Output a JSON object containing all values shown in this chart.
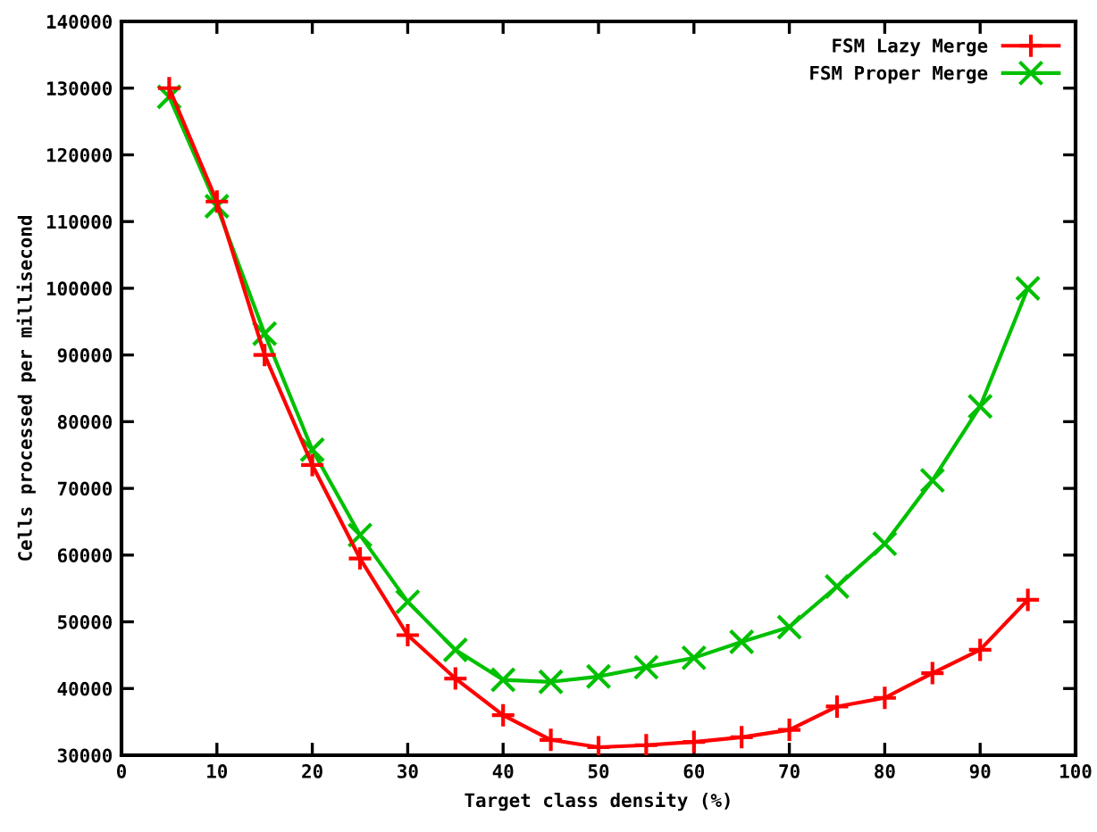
{
  "chart_data": {
    "type": "line",
    "xlabel": "Target class density (%)",
    "ylabel": "Cells processed per millisecond",
    "x": [
      5,
      10,
      15,
      20,
      25,
      30,
      35,
      40,
      45,
      50,
      55,
      60,
      65,
      70,
      75,
      80,
      85,
      90,
      95
    ],
    "series": [
      {
        "name": "FSM Lazy Merge",
        "color": "#ff0000",
        "marker": "plus",
        "values": [
          130000,
          113000,
          90000,
          73500,
          59500,
          48000,
          41500,
          36000,
          32300,
          31200,
          31500,
          32000,
          32700,
          33800,
          37300,
          38600,
          42300,
          45800,
          53300
        ]
      },
      {
        "name": "FSM Proper Merge",
        "color": "#00c000",
        "marker": "cross",
        "values": [
          128700,
          112300,
          93200,
          75800,
          63000,
          53000,
          45800,
          41300,
          41000,
          41800,
          43200,
          44600,
          47000,
          49200,
          55300,
          61700,
          71200,
          82300,
          100000
        ]
      }
    ],
    "xlim": [
      0,
      100
    ],
    "xticks": [
      0,
      10,
      20,
      30,
      40,
      50,
      60,
      70,
      80,
      90,
      100
    ],
    "ylim": [
      30000,
      140000
    ],
    "yticks": [
      30000,
      40000,
      50000,
      60000,
      70000,
      80000,
      90000,
      100000,
      110000,
      120000,
      130000,
      140000
    ],
    "grid": false,
    "legend": "top right",
    "line_style": "solid"
  }
}
